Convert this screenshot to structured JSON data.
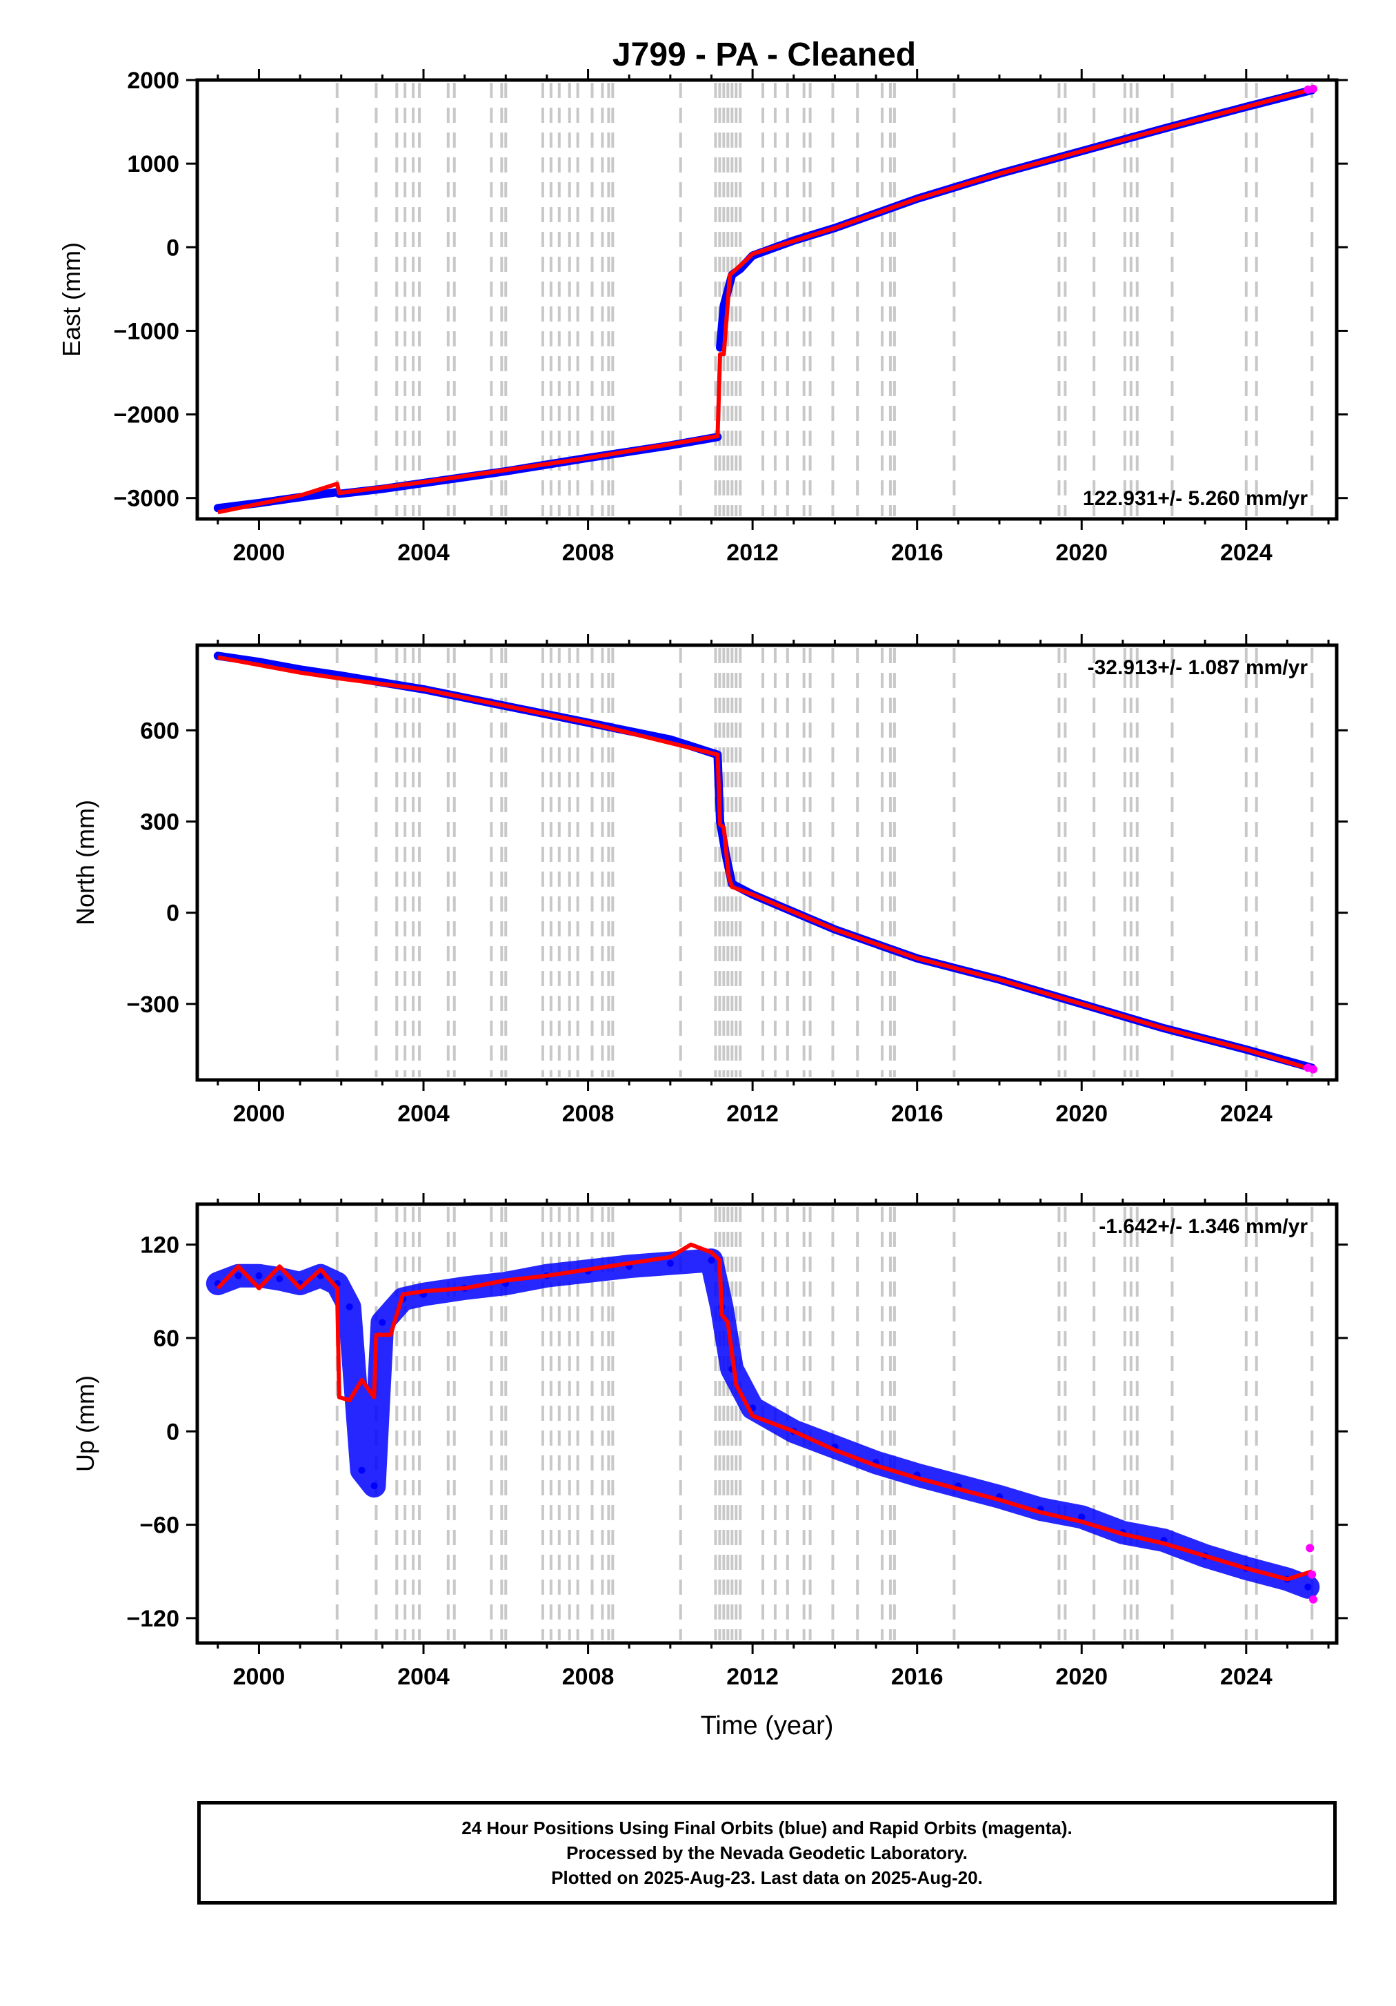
{
  "title": "J799  - PA - Cleaned",
  "colors": {
    "final_orbits": "#0000ff",
    "rapid_orbits": "#ff00ff",
    "model": "#ff0000",
    "event_lines": "#c8c8c8",
    "frame": "#000000"
  },
  "footer": {
    "line1": "24 Hour Positions Using Final Orbits (blue) and Rapid Orbits (magenta).",
    "line2": "Processed by the Nevada Geodetic Laboratory.",
    "line3": "Plotted on 2025-Aug-23. Last data on 2025-Aug-20."
  },
  "chart_data": [
    {
      "type": "scatter",
      "panel": "east",
      "ylabel": "East (mm)",
      "xlim": [
        1998.5,
        2026.2
      ],
      "ylim": [
        -3250,
        2000
      ],
      "yticks": [
        -3000,
        -2000,
        -1000,
        0,
        1000,
        2000
      ],
      "xticks": [
        2000,
        2004,
        2008,
        2012,
        2016,
        2020,
        2024
      ],
      "rate_label": "122.931+/- 5.260 mm/yr",
      "rate_position": "bottom-right",
      "grid": false,
      "series": [
        {
          "role": "final",
          "x": [
            1999.0,
            2000.0,
            2001.0,
            2001.9,
            2001.95,
            2003.0,
            2004.0,
            2006.0,
            2008.0,
            2010.0,
            2011.15,
            2011.21,
            2011.3,
            2011.5,
            2011.7,
            2012.0,
            2013.0,
            2014.0,
            2016.0,
            2018.0,
            2020.0,
            2022.0,
            2024.0,
            2025.6
          ],
          "y": [
            -3120,
            -3060,
            -2990,
            -2930,
            -2950,
            -2890,
            -2820,
            -2680,
            -2520,
            -2370,
            -2270,
            -1200,
            -700,
            -330,
            -260,
            -100,
            80,
            230,
            580,
            880,
            1150,
            1420,
            1680,
            1880
          ]
        },
        {
          "role": "model",
          "x": [
            1999.0,
            2001.0,
            2001.9,
            2001.95,
            2004.0,
            2008.0,
            2011.15,
            2011.21,
            2011.3,
            2011.45,
            2011.7,
            2012.0,
            2014.0,
            2016.0,
            2018.0,
            2020.0,
            2022.0,
            2024.0,
            2025.6
          ],
          "y": [
            -3170,
            -2970,
            -2830,
            -2940,
            -2810,
            -2520,
            -2260,
            -1280,
            -1280,
            -330,
            -220,
            -80,
            230,
            580,
            880,
            1150,
            1420,
            1680,
            1890
          ]
        },
        {
          "role": "rapid",
          "x": [
            2025.5,
            2025.63
          ],
          "y": [
            1885,
            1895
          ]
        }
      ]
    },
    {
      "type": "scatter",
      "panel": "north",
      "ylabel": "North (mm)",
      "xlim": [
        1998.5,
        2026.2
      ],
      "ylim": [
        -550,
        880
      ],
      "yticks": [
        -300,
        0,
        300,
        600
      ],
      "xticks": [
        2000,
        2004,
        2008,
        2012,
        2016,
        2020,
        2024
      ],
      "rate_label": "-32.913+/- 1.087 mm/yr",
      "rate_position": "top-right",
      "grid": false,
      "series": [
        {
          "role": "final",
          "x": [
            1999.0,
            2000.0,
            2001.0,
            2002.0,
            2004.0,
            2006.0,
            2008.0,
            2010.0,
            2011.15,
            2011.21,
            2011.35,
            2011.5,
            2012.0,
            2014.0,
            2016.0,
            2018.0,
            2020.0,
            2022.0,
            2024.0,
            2025.6
          ],
          "y": [
            845,
            825,
            800,
            780,
            735,
            680,
            625,
            570,
            520,
            300,
            190,
            95,
            60,
            -55,
            -150,
            -220,
            -300,
            -380,
            -450,
            -510
          ]
        },
        {
          "role": "model",
          "x": [
            1999.0,
            2001.0,
            2002.0,
            2004.0,
            2006.0,
            2008.0,
            2011.15,
            2011.21,
            2011.3,
            2011.42,
            2011.5,
            2012.0,
            2014.0,
            2016.0,
            2018.0,
            2020.0,
            2022.0,
            2024.0,
            2025.6
          ],
          "y": [
            840,
            790,
            770,
            735,
            680,
            625,
            520,
            290,
            280,
            120,
            85,
            60,
            -55,
            -150,
            -220,
            -300,
            -380,
            -450,
            -515
          ]
        },
        {
          "role": "rapid",
          "x": [
            2025.5,
            2025.63
          ],
          "y": [
            -510,
            -515
          ]
        }
      ]
    },
    {
      "type": "scatter",
      "panel": "up",
      "ylabel": "Up (mm)",
      "xlabel": "Time (year)",
      "xlim": [
        1998.5,
        2026.2
      ],
      "ylim": [
        -136,
        146
      ],
      "yticks": [
        -120,
        -60,
        0,
        60,
        120
      ],
      "xticks": [
        2000,
        2004,
        2008,
        2012,
        2016,
        2020,
        2024
      ],
      "rate_label": "-1.642+/- 1.346 mm/yr",
      "rate_position": "top-right",
      "grid": false,
      "series": [
        {
          "role": "final",
          "x": [
            1999.0,
            1999.5,
            2000.0,
            2000.5,
            2001.0,
            2001.5,
            2001.9,
            2002.2,
            2002.5,
            2002.8,
            2003.0,
            2003.5,
            2004.0,
            2005.0,
            2006.0,
            2007.0,
            2008.0,
            2009.0,
            2010.0,
            2011.0,
            2011.25,
            2011.5,
            2012.0,
            2013.0,
            2014.0,
            2015.0,
            2016.0,
            2017.0,
            2018.0,
            2019.0,
            2020.0,
            2021.0,
            2022.0,
            2023.0,
            2024.0,
            2025.0,
            2025.5
          ],
          "y": [
            95,
            100,
            100,
            98,
            95,
            100,
            95,
            80,
            -25,
            -35,
            70,
            85,
            88,
            92,
            95,
            100,
            103,
            106,
            108,
            110,
            80,
            40,
            15,
            0,
            -10,
            -20,
            -28,
            -35,
            -42,
            -50,
            -55,
            -65,
            -70,
            -80,
            -88,
            -95,
            -100
          ]
        },
        {
          "role": "model",
          "x": [
            1999.0,
            1999.5,
            2000.0,
            2000.5,
            2001.0,
            2001.5,
            2001.9,
            2001.95,
            2002.2,
            2002.5,
            2002.8,
            2002.85,
            2003.2,
            2003.5,
            2004.0,
            2005.0,
            2006.0,
            2007.0,
            2008.0,
            2009.0,
            2010.0,
            2010.5,
            2011.0,
            2011.2,
            2011.25,
            2011.4,
            2011.6,
            2012.0,
            2013.0,
            2014.0,
            2015.0,
            2016.0,
            2017.0,
            2018.0,
            2019.0,
            2020.0,
            2021.0,
            2022.0,
            2023.0,
            2024.0,
            2025.0,
            2025.6
          ],
          "y": [
            92,
            106,
            92,
            106,
            92,
            104,
            92,
            22,
            20,
            33,
            22,
            62,
            62,
            88,
            90,
            92,
            97,
            100,
            104,
            108,
            112,
            120,
            115,
            110,
            75,
            70,
            30,
            10,
            0,
            -12,
            -22,
            -30,
            -37,
            -44,
            -52,
            -58,
            -66,
            -72,
            -80,
            -88,
            -95,
            -90
          ]
        },
        {
          "role": "rapid",
          "x": [
            2025.55,
            2025.6,
            2025.63
          ],
          "y": [
            -75,
            -92,
            -108
          ]
        }
      ]
    }
  ],
  "event_lines": [
    2001.9,
    2002.85,
    2003.35,
    2003.55,
    2003.75,
    2003.9,
    2004.6,
    2004.75,
    2005.65,
    2005.9,
    2006.0,
    2006.9,
    2007.1,
    2007.3,
    2007.55,
    2007.75,
    2008.1,
    2008.35,
    2008.5,
    2008.6,
    2010.25,
    2011.1,
    2011.2,
    2011.3,
    2011.4,
    2011.5,
    2011.6,
    2011.7,
    2012.25,
    2012.55,
    2012.85,
    2013.25,
    2013.4,
    2013.95,
    2014.55,
    2015.15,
    2015.35,
    2015.45,
    2016.9,
    2019.45,
    2019.6,
    2020.3,
    2021.05,
    2021.2,
    2021.35,
    2022.2,
    2024.0,
    2024.25,
    2025.6
  ]
}
